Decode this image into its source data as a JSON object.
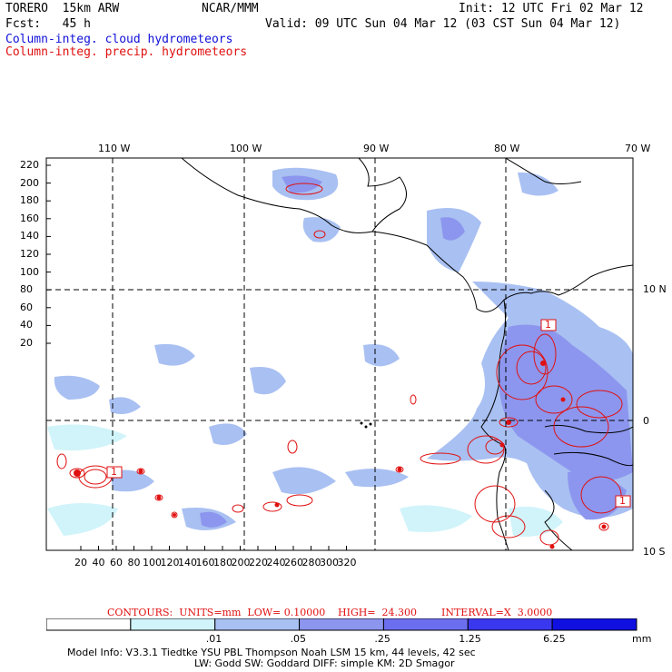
{
  "header": {
    "model": "TORERO  15km ARW",
    "center": "NCAR/MMM",
    "init": "Init: 12 UTC Fri 02 Mar 12",
    "fcst": "Fcst:   45 h",
    "valid": "Valid: 09 UTC Sun 04 Mar 12 (03 CST Sun 04 Mar 12)",
    "field1": "Column-integ. cloud hydrometeors",
    "field2": "Column-integ. precip. hydrometeors"
  },
  "colors": {
    "cloud_field": "#1010d8",
    "precip_field": "#e01010",
    "grid": "#000000"
  },
  "axes": {
    "top_lon": [
      "110 W",
      "100 W",
      "90 W",
      "80 W",
      "70 W"
    ],
    "right_lat": [
      "10 N",
      "0",
      "10 S"
    ],
    "y_ticks": [
      "220",
      "200",
      "180",
      "160",
      "140",
      "120",
      "100",
      "80",
      "60",
      "40",
      "20"
    ],
    "x_ticks": [
      "20",
      "40",
      "60",
      "80",
      "100",
      "120",
      "140",
      "160",
      "180",
      "200",
      "220",
      "240",
      "260",
      "280",
      "300",
      "320"
    ]
  },
  "contour_labels": [
    "1",
    "1",
    "1"
  ],
  "contours_line": {
    "units": "CONTOURS:  UNITS=mm  LOW= 0.10000",
    "high": "HIGH=  24.300",
    "interval": "INTERVAL=X  3.0000"
  },
  "colorbar": {
    "labels": [
      ".01",
      ".05",
      ".25",
      "1.25",
      "6.25"
    ],
    "unit": "mm",
    "colors": [
      "#ffffff",
      "#d0f4fa",
      "#a9c0f2",
      "#8c96ee",
      "#6c6ef0",
      "#3a38ee",
      "#1010e0"
    ]
  },
  "footer": {
    "line1": "Model Info: V3.3.1   Tiedtke YSU PBL  Thompson    Noah LSM  15 km,   44 levels,   42 sec",
    "line2": "LW: Godd SW: Goddard DIFF: simple KM: 2D Smagor"
  }
}
